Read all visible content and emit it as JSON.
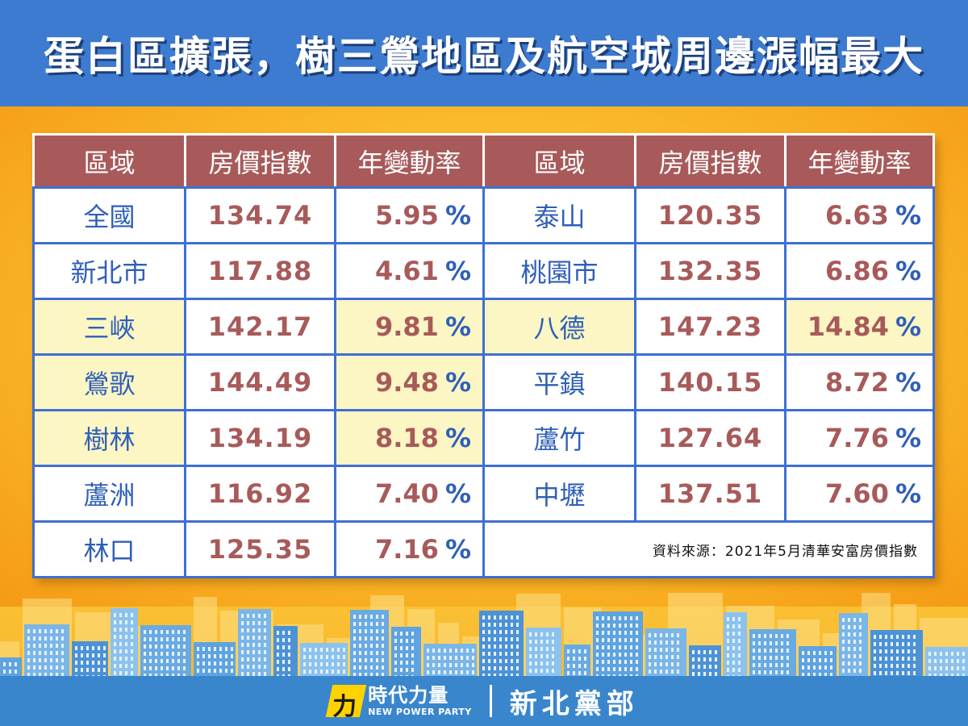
{
  "header": {
    "title": "蛋白區擴張，樹三鶯地區及航空城周邊漲幅最大"
  },
  "table": {
    "headers": [
      "區域",
      "房價指數",
      "年變動率",
      "區域",
      "房價指數",
      "年變動率"
    ],
    "left_rows": [
      {
        "area": "全國",
        "index": "134.74",
        "rate": "5.95",
        "highlight": false
      },
      {
        "area": "新北市",
        "index": "117.88",
        "rate": "4.61",
        "highlight": false
      },
      {
        "area": "三峽",
        "index": "142.17",
        "rate": "9.81",
        "highlight": true
      },
      {
        "area": "鶯歌",
        "index": "144.49",
        "rate": "9.48",
        "highlight": true
      },
      {
        "area": "樹林",
        "index": "134.19",
        "rate": "8.18",
        "highlight": true
      },
      {
        "area": "蘆洲",
        "index": "116.92",
        "rate": "7.40",
        "highlight": false
      },
      {
        "area": "林口",
        "index": "125.35",
        "rate": "7.16",
        "highlight": false
      }
    ],
    "right_rows": [
      {
        "area": "泰山",
        "index": "120.35",
        "rate": "6.63",
        "highlight": false
      },
      {
        "area": "桃園市",
        "index": "132.35",
        "rate": "6.86",
        "highlight": false
      },
      {
        "area": "八德",
        "index": "147.23",
        "rate": "14.84",
        "highlight": true
      },
      {
        "area": "平鎮",
        "index": "140.15",
        "rate": "8.72",
        "highlight": false
      },
      {
        "area": "蘆竹",
        "index": "127.64",
        "rate": "7.76",
        "highlight": false
      },
      {
        "area": "中壢",
        "index": "137.51",
        "rate": "7.60",
        "highlight": false
      }
    ],
    "percent_sign": "%",
    "source": "資料來源：2021年5月清華安富房價指數"
  },
  "footer": {
    "logo_mark": "力",
    "logo_zh": "時代力量",
    "logo_en": "NEW POWER PARTY",
    "branch": "新北黨部"
  },
  "colors": {
    "header_bg": "#3d7bd0",
    "table_header_bg": "#a85a5a",
    "area_text": "#2f5fb8",
    "value_text": "#a85a5a",
    "highlight_bg": "#fbf6c4",
    "footer_bg": "#3a86cc"
  }
}
